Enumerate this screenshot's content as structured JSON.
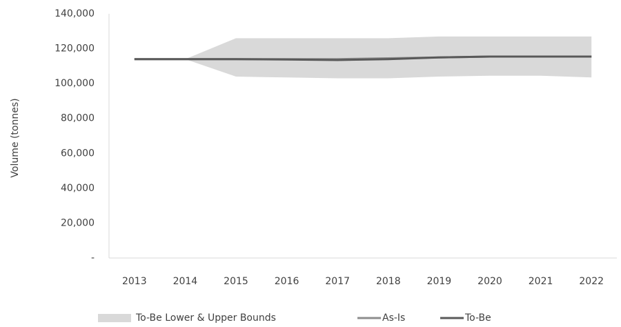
{
  "chart_data": {
    "type": "line",
    "y_label": "Volume (tonnes)",
    "categories": [
      "2013",
      "2014",
      "2015",
      "2016",
      "2017",
      "2018",
      "2019",
      "2020",
      "2021",
      "2022"
    ],
    "band": {
      "name": "To-Be Lower & Upper Bounds",
      "color": "#d9d9d9",
      "lower": [
        114000,
        114000,
        104000,
        103500,
        103000,
        103000,
        104000,
        104500,
        104500,
        103500
      ],
      "upper": [
        114000,
        114000,
        126000,
        126000,
        126000,
        126000,
        127000,
        127000,
        127000,
        127000
      ]
    },
    "series": [
      {
        "name": "As-Is",
        "color": "#8c8c8c",
        "values": [
          114000,
          114000,
          114000,
          114000,
          114000,
          114500,
          115000,
          115500,
          115500,
          115500
        ]
      },
      {
        "name": "To-Be",
        "color": "#595959",
        "values": [
          114000,
          114000,
          114000,
          113800,
          113500,
          114000,
          115000,
          115500,
          115500,
          115500
        ]
      }
    ],
    "ylim": [
      0,
      140000
    ],
    "yticks": [
      {
        "value": 0,
        "label": "-"
      },
      {
        "value": 20000,
        "label": "20,000"
      },
      {
        "value": 40000,
        "label": "40,000"
      },
      {
        "value": 60000,
        "label": "60,000"
      },
      {
        "value": 80000,
        "label": "80,000"
      },
      {
        "value": 100000,
        "label": "100,000"
      },
      {
        "value": 120000,
        "label": "120,000"
      },
      {
        "value": 140000,
        "label": "140,000"
      }
    ],
    "grid": false,
    "legend": "bottom"
  }
}
